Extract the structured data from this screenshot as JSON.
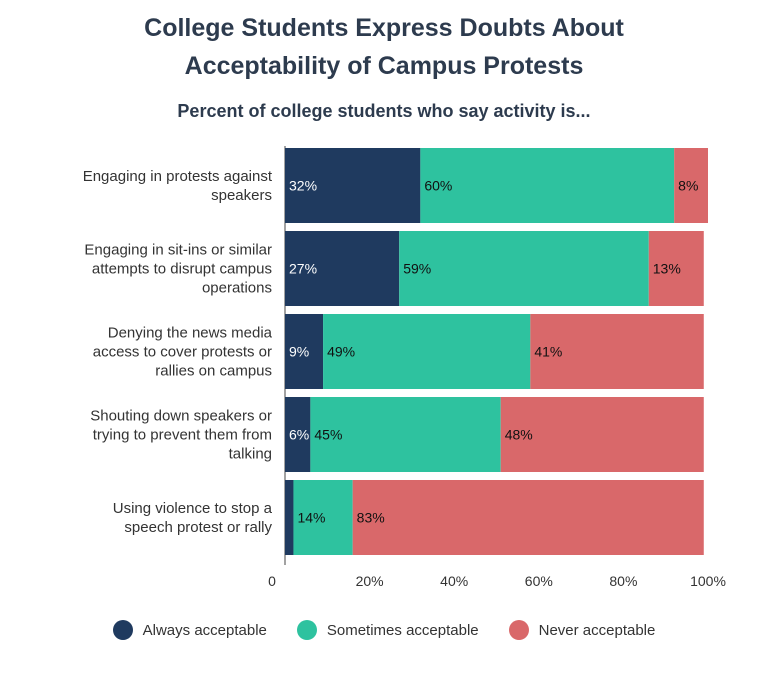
{
  "chart_data": {
    "type": "bar",
    "orientation": "horizontal",
    "stacked": true,
    "title_line1": "College Students Express Doubts About",
    "title_line2": "Acceptability of Campus Protests",
    "subtitle": "Percent of college students who say activity is...",
    "categories": [
      [
        "Engaging in protests against",
        "speakers"
      ],
      [
        "Engaging in sit-ins or similar",
        "attempts to disrupt campus",
        "operations"
      ],
      [
        "Denying the news media",
        "access to cover protests or",
        "rallies on campus"
      ],
      [
        "Shouting down speakers or",
        "trying to prevent them from",
        "talking"
      ],
      [
        "Using violence to stop a",
        "speech protest or rally"
      ]
    ],
    "series": [
      {
        "name": "Always acceptable",
        "color": "#1f3a5f",
        "label_color": "#ffffff",
        "values": [
          32,
          27,
          9,
          6,
          2
        ],
        "labels": [
          "32%",
          "27%",
          "9%",
          "6%",
          ""
        ]
      },
      {
        "name": "Sometimes acceptable",
        "color": "#2ec29f",
        "label_color": "#111111",
        "values": [
          60,
          59,
          49,
          45,
          14
        ],
        "labels": [
          "60%",
          "59%",
          "49%",
          "45%",
          "14%"
        ]
      },
      {
        "name": "Never acceptable",
        "color": "#d9686a",
        "label_color": "#111111",
        "values": [
          8,
          13,
          41,
          48,
          83
        ],
        "labels": [
          "8%",
          "13%",
          "41%",
          "48%",
          "83%"
        ]
      }
    ],
    "xlim": [
      0,
      100
    ],
    "xticks": [
      0,
      20,
      40,
      60,
      80,
      100
    ],
    "xtick_labels": [
      "0",
      "20%",
      "40%",
      "60%",
      "80%",
      "100%"
    ],
    "legend_position": "bottom",
    "grid": false
  }
}
